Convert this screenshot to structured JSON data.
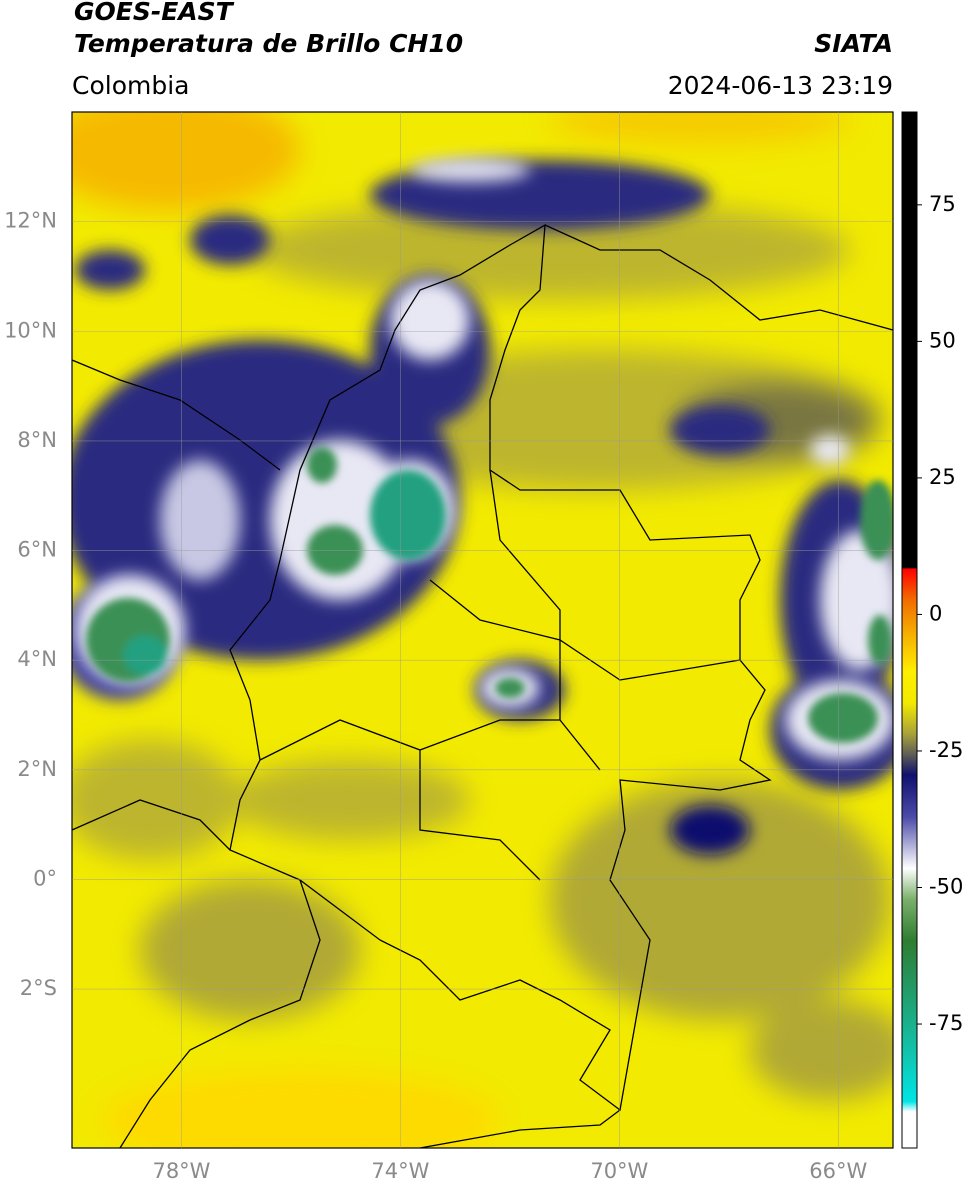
{
  "header": {
    "title_line1": "GOES-EAST",
    "title_line2": "Temperatura de Brillo CH10",
    "source": "SIATA",
    "region": "Colombia",
    "timestamp": "2024-06-13 23:19"
  },
  "map": {
    "lonlim": [
      -80,
      -65
    ],
    "latlim": [
      -4.9,
      14
    ],
    "lonticks": [
      {
        "value": -78,
        "label": "78°W"
      },
      {
        "value": -74,
        "label": "74°W"
      },
      {
        "value": -70,
        "label": "70°W"
      },
      {
        "value": -66,
        "label": "66°W"
      }
    ],
    "latticks": [
      {
        "value": 12,
        "label": "12°N"
      },
      {
        "value": 10,
        "label": "10°N"
      },
      {
        "value": 8,
        "label": "8°N"
      },
      {
        "value": 6,
        "label": "6°N"
      },
      {
        "value": 4,
        "label": "4°N"
      },
      {
        "value": 2,
        "label": "2°N"
      },
      {
        "value": 0,
        "label": "0°"
      },
      {
        "value": -2,
        "label": "2°S"
      }
    ]
  },
  "colorbar": {
    "lim": [
      -97.7,
      92
    ],
    "ticks": [
      75,
      50,
      25,
      0,
      -25,
      -50,
      -75
    ]
  }
}
